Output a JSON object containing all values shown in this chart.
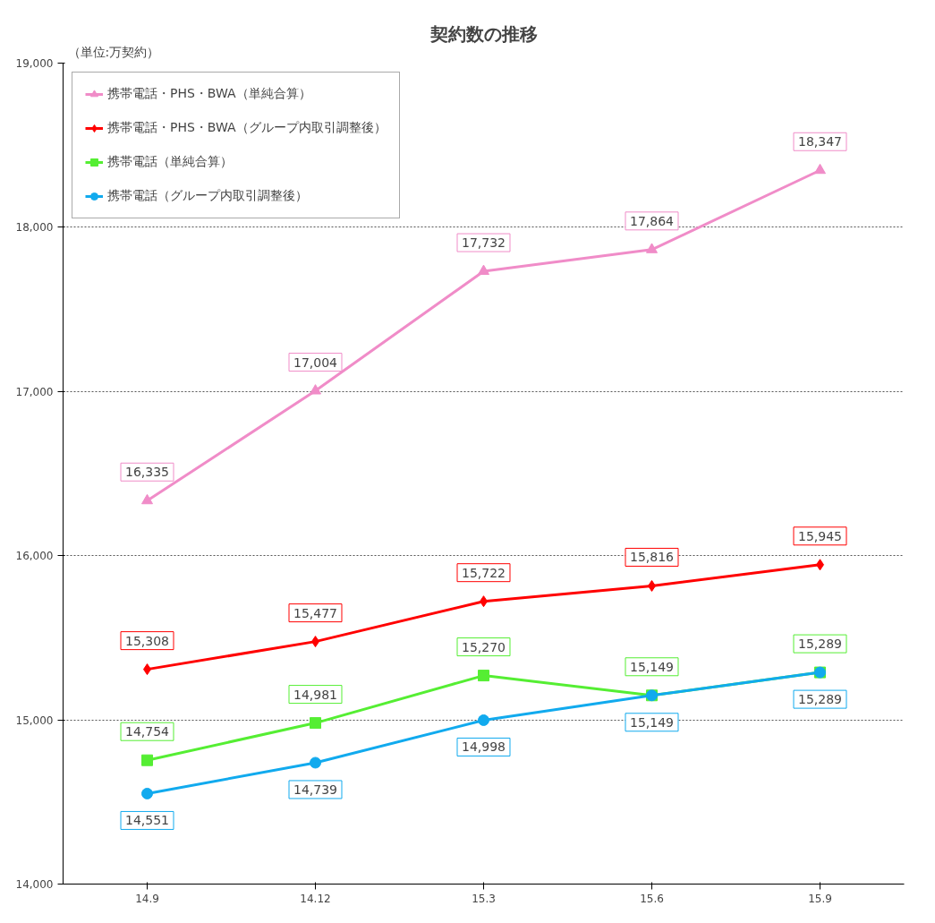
{
  "chart_data": {
    "type": "line",
    "title": "契約数の推移",
    "annotations": [
      "（単位:万契約）"
    ],
    "categories": [
      "14.9",
      "14.12",
      "15.3",
      "15.6",
      "15.9"
    ],
    "series": [
      {
        "name": "携帯電話・PHS・BWA（単純合算）",
        "color": "#f08cc8",
        "marker": "triangle",
        "values": [
          16335,
          17004,
          17732,
          17864,
          18347
        ],
        "value_labels": [
          "16,335",
          "17,004",
          "17,732",
          "17,864",
          "18,347"
        ]
      },
      {
        "name": "携帯電話・PHS・BWA（グループ内取引調整後）",
        "color": "#ff0000",
        "marker": "diamond",
        "values": [
          15308,
          15477,
          15722,
          15816,
          15945
        ],
        "value_labels": [
          "15,308",
          "15,477",
          "15,722",
          "15,816",
          "15,945"
        ]
      },
      {
        "name": "携帯電話（単純合算）",
        "color": "#55ee33",
        "marker": "square",
        "values": [
          14754,
          14981,
          15270,
          15149,
          15289
        ],
        "value_labels": [
          "14,754",
          "14,981",
          "15,270",
          "15,149",
          "15,289"
        ]
      },
      {
        "name": "携帯電話（グループ内取引調整後）",
        "color": "#11aaee",
        "marker": "circle",
        "values": [
          14551,
          14739,
          14998,
          15149,
          15289
        ],
        "value_labels": [
          "14,551",
          "14,739",
          "14,998",
          "15,149",
          "15,289"
        ]
      }
    ],
    "ylim": [
      14000,
      19000
    ],
    "yticks": [
      {
        "value": 14000,
        "label": "14,000"
      },
      {
        "value": 15000,
        "label": "15,000"
      },
      {
        "value": 16000,
        "label": "16,000"
      },
      {
        "value": 17000,
        "label": "17,000"
      },
      {
        "value": 18000,
        "label": "18,000"
      },
      {
        "value": 19000,
        "label": "19,000"
      }
    ],
    "grid": "y",
    "legend": "top left",
    "line_style": "solid"
  }
}
